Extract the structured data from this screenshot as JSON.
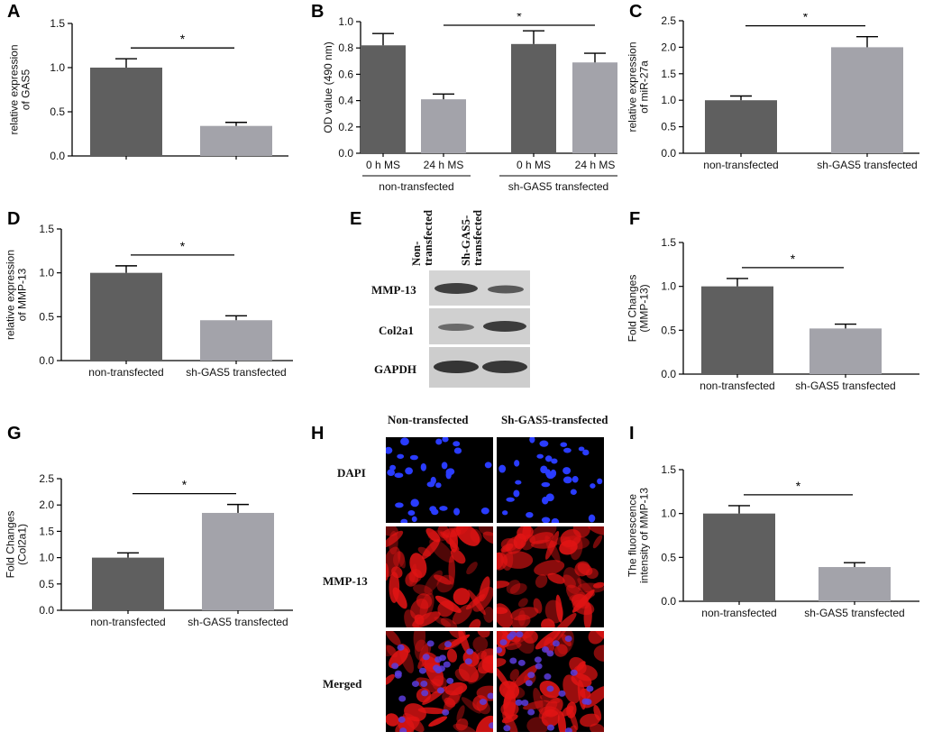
{
  "panels": {
    "A": "A",
    "B": "B",
    "C": "C",
    "D": "D",
    "E": "E",
    "F": "F",
    "G": "G",
    "H": "H",
    "I": "I"
  },
  "colors": {
    "dark_bar": "#5f5f5f",
    "light_bar": "#a3a3aa",
    "blot_bg": "#d2d2d2",
    "band": "#3e3e3e"
  },
  "chart_data": [
    {
      "id": "A",
      "type": "bar",
      "ylabel": [
        "relative expression",
        "of GAS5"
      ],
      "ylim": [
        0,
        1.5
      ],
      "yticks": [
        "0.0",
        "0.5",
        "1.0",
        "1.5"
      ],
      "tick_values": [
        0,
        0.5,
        1.0,
        1.5
      ],
      "categories": [
        "",
        ""
      ],
      "values": [
        1.0,
        0.34
      ],
      "errors": [
        0.1,
        0.04
      ],
      "significance": "*"
    },
    {
      "id": "B",
      "type": "bar",
      "ylabel": [
        "OD value (490 nm)"
      ],
      "ylim": [
        0,
        1.0
      ],
      "yticks": [
        "0.0",
        "0.2",
        "0.4",
        "0.6",
        "0.8",
        "1.0"
      ],
      "tick_values": [
        0,
        0.2,
        0.4,
        0.6,
        0.8,
        1.0
      ],
      "categories": [
        "0 h MS",
        "24 h MS",
        "0 h MS",
        "24 h MS"
      ],
      "groups": [
        "non-transfected",
        "sh-GAS5 transfected"
      ],
      "values": [
        0.82,
        0.41,
        0.83,
        0.69
      ],
      "errors": [
        0.09,
        0.04,
        0.1,
        0.07
      ],
      "significance": "*"
    },
    {
      "id": "C",
      "type": "bar",
      "ylabel": [
        "relative expression",
        "of miR-27a"
      ],
      "ylim": [
        0,
        2.5
      ],
      "yticks": [
        "0.0",
        "0.5",
        "1.0",
        "1.5",
        "2.0",
        "2.5"
      ],
      "tick_values": [
        0,
        0.5,
        1.0,
        1.5,
        2.0,
        2.5
      ],
      "categories": [
        "non-transfected",
        "sh-GAS5 transfected"
      ],
      "values": [
        1.0,
        2.0
      ],
      "errors": [
        0.08,
        0.2
      ],
      "significance": "*"
    },
    {
      "id": "D",
      "type": "bar",
      "ylabel": [
        "relative expression",
        "of MMP-13"
      ],
      "ylim": [
        0,
        1.5
      ],
      "yticks": [
        "0.0",
        "0.5",
        "1.0",
        "1.5"
      ],
      "tick_values": [
        0,
        0.5,
        1.0,
        1.5
      ],
      "categories": [
        "non-transfected",
        "sh-GAS5 transfected"
      ],
      "values": [
        1.0,
        0.46
      ],
      "errors": [
        0.08,
        0.05
      ],
      "significance": "*"
    },
    {
      "id": "F",
      "type": "bar",
      "ylabel": [
        "Fold Changes",
        "(MMP-13)"
      ],
      "ylim": [
        0,
        1.5
      ],
      "yticks": [
        "0.0",
        "0.5",
        "1.0",
        "1.5"
      ],
      "tick_values": [
        0,
        0.5,
        1.0,
        1.5
      ],
      "categories": [
        "non-transfected",
        "sh-GAS5 transfected"
      ],
      "values": [
        1.0,
        0.52
      ],
      "errors": [
        0.09,
        0.05
      ],
      "significance": "*"
    },
    {
      "id": "G",
      "type": "bar",
      "ylabel": [
        "Fold Changes",
        "(Col2a1)"
      ],
      "ylim": [
        0,
        2.5
      ],
      "yticks": [
        "0.0",
        "0.5",
        "1.0",
        "1.5",
        "2.0",
        "2.5"
      ],
      "tick_values": [
        0,
        0.5,
        1.0,
        1.5,
        2.0,
        2.5
      ],
      "categories": [
        "non-transfected",
        "sh-GAS5 transfected"
      ],
      "values": [
        1.0,
        1.85
      ],
      "errors": [
        0.09,
        0.16
      ],
      "significance": "*"
    },
    {
      "id": "I",
      "type": "bar",
      "ylabel": [
        "The fluorescence",
        "intensity of MMP-13"
      ],
      "ylim": [
        0,
        1.5
      ],
      "yticks": [
        "0.0",
        "0.5",
        "1.0",
        "1.5"
      ],
      "tick_values": [
        0,
        0.5,
        1.0,
        1.5
      ],
      "categories": [
        "non-transfected",
        "sh-GAS5 transfected"
      ],
      "values": [
        1.0,
        0.39
      ],
      "errors": [
        0.09,
        0.05
      ],
      "significance": "*"
    }
  ],
  "blot": {
    "columns": [
      "Non-transfected",
      "Sh-GAS5-transfected"
    ],
    "rows": [
      "MMP-13",
      "Col2a1",
      "GAPDH"
    ]
  },
  "micro": {
    "columns": [
      "Non-transfected",
      "Sh-GAS5-transfected"
    ],
    "rows": [
      "DAPI",
      "MMP-13",
      "Merged"
    ]
  }
}
